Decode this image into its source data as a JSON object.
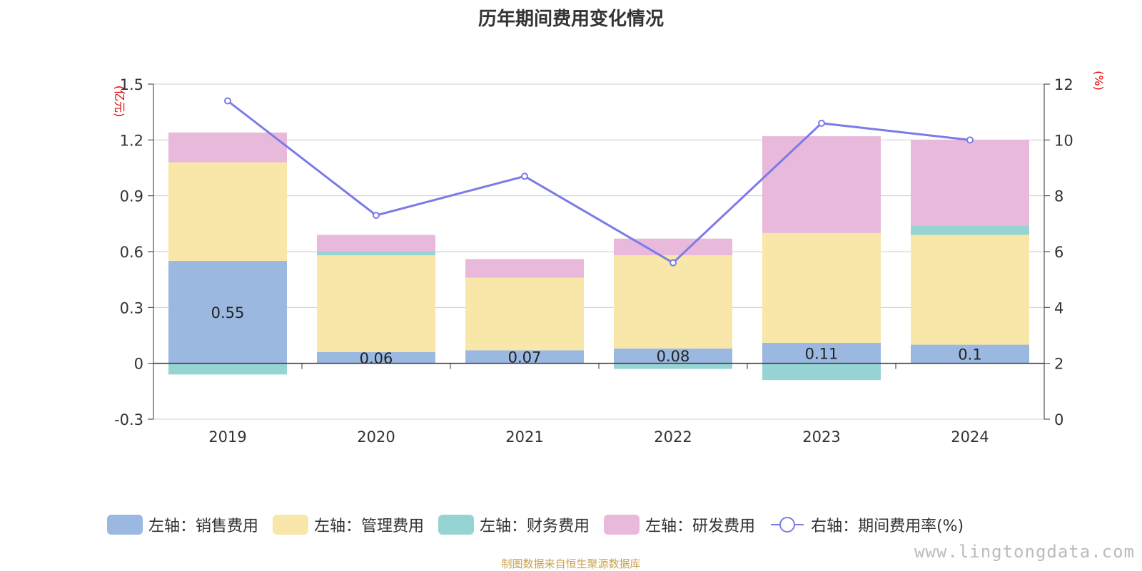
{
  "chart_data": {
    "type": "bar",
    "title": "历年期间费用变化情况",
    "left_axis_unit": "(亿元)",
    "right_axis_unit": "(%)",
    "categories": [
      "2019",
      "2020",
      "2021",
      "2022",
      "2023",
      "2024"
    ],
    "ylim_left": [
      -0.3,
      1.5
    ],
    "yticks_left": [
      "-0.3",
      "0",
      "0.3",
      "0.6",
      "0.9",
      "1.2",
      "1.5"
    ],
    "ylim_right": [
      0,
      12
    ],
    "yticks_right": [
      "0",
      "2",
      "4",
      "6",
      "8",
      "10",
      "12"
    ],
    "stacked": true,
    "grid": true,
    "legend_position": "bottom",
    "series": [
      {
        "name": "左轴：销售费用",
        "axis": "left",
        "type": "bar",
        "color": "#9bb8e1",
        "values": [
          0.55,
          0.06,
          0.07,
          0.08,
          0.11,
          0.1
        ],
        "labels": [
          "0.55",
          "0.06",
          "0.07",
          "0.08",
          "0.11",
          "0.1"
        ]
      },
      {
        "name": "左轴：管理费用",
        "axis": "left",
        "type": "bar",
        "color": "#f8e7a8",
        "values": [
          0.53,
          0.52,
          0.39,
          0.5,
          0.59,
          0.59
        ]
      },
      {
        "name": "左轴：财务费用",
        "axis": "left",
        "type": "bar",
        "color": "#96d4d4",
        "values": [
          -0.06,
          0.02,
          0.0,
          -0.03,
          -0.09,
          0.05
        ]
      },
      {
        "name": "左轴：研发费用",
        "axis": "left",
        "type": "bar",
        "color": "#e8b9da",
        "values": [
          0.16,
          0.09,
          0.1,
          0.09,
          0.52,
          0.46
        ]
      },
      {
        "name": "右轴：期间费用率(%)",
        "axis": "right",
        "type": "line",
        "color": "#7b7be8",
        "values": [
          11.4,
          7.3,
          8.7,
          5.6,
          10.6,
          10.0
        ]
      }
    ]
  },
  "source_note": "制图数据来自恒生聚源数据库",
  "watermark": "www.lingtongdata.com"
}
